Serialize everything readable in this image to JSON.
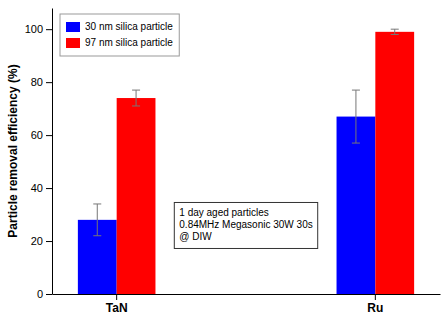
{
  "chart_data": {
    "type": "bar",
    "categories": [
      "TaN",
      "Ru"
    ],
    "series": [
      {
        "name": "30 nm silica particle",
        "color": "#0000FF",
        "values": [
          28,
          67
        ],
        "errors": [
          6,
          10
        ]
      },
      {
        "name": "97 nm silica particle",
        "color": "#FF0000",
        "values": [
          74,
          99
        ],
        "errors": [
          3,
          1
        ]
      }
    ],
    "ylabel": "Particle removal efficiency (%)",
    "ylim": [
      0,
      108
    ],
    "yticks": [
      0,
      20,
      40,
      60,
      80,
      100
    ],
    "annotations": [
      "1 day aged particles",
      "0.84MHz Megasonic 30W 30s",
      "@ DIW"
    ],
    "legend": "upper left",
    "grid": false
  }
}
